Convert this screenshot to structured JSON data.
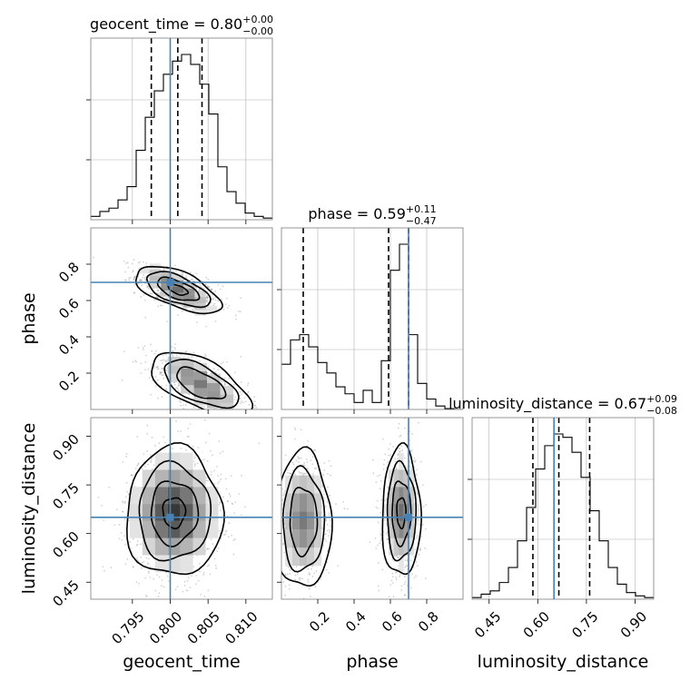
{
  "chart_data": {
    "type": "corner",
    "parameters": [
      "geocent_time",
      "phase",
      "luminosity_distance"
    ],
    "truths": {
      "geocent_time": 0.8,
      "phase": 0.7,
      "luminosity_distance": 0.65
    },
    "marginals": [
      {
        "param": "geocent_time",
        "title": "geocent_time = 0.80",
        "sup": "+0.00",
        "sub": "−0.00",
        "median": 0.801,
        "lo": 0.7975,
        "hi": 0.8042,
        "bin_edges": [
          0.7895,
          0.7907,
          0.7919,
          0.7931,
          0.7943,
          0.7955,
          0.7967,
          0.7979,
          0.7991,
          0.8003,
          0.8015,
          0.8027,
          0.8039,
          0.8051,
          0.8063,
          0.8075,
          0.8087,
          0.8099,
          0.8111,
          0.8123,
          0.8135
        ],
        "counts": [
          0.02,
          0.05,
          0.07,
          0.12,
          0.2,
          0.42,
          0.62,
          0.78,
          0.88,
          0.96,
          1.0,
          0.94,
          0.82,
          0.64,
          0.32,
          0.17,
          0.1,
          0.04,
          0.02,
          0.01
        ]
      },
      {
        "param": "phase",
        "title": "phase = 0.59",
        "sup": "+0.11",
        "sub": "−0.47",
        "median": 0.59,
        "lo": 0.12,
        "hi": 0.7,
        "bin_edges": [
          0.0,
          0.05,
          0.1,
          0.15,
          0.2,
          0.25,
          0.3,
          0.35,
          0.4,
          0.45,
          0.5,
          0.55,
          0.6,
          0.65,
          0.7,
          0.75,
          0.8,
          0.85,
          0.9,
          0.95,
          1.0
        ],
        "counts": [
          0.26,
          0.4,
          0.43,
          0.36,
          0.27,
          0.21,
          0.13,
          0.09,
          0.04,
          0.11,
          0.04,
          0.28,
          0.8,
          0.95,
          0.43,
          0.15,
          0.06,
          0.02,
          0.005,
          0.0
        ]
      },
      {
        "param": "luminosity_distance",
        "title": "luminosity_distance = 0.67",
        "sup": "+0.09",
        "sub": "−0.08",
        "median": 0.665,
        "lo": 0.585,
        "hi": 0.76,
        "bin_edges": [
          0.3975,
          0.4255,
          0.4535,
          0.4815,
          0.5095,
          0.5375,
          0.5655,
          0.5935,
          0.6215,
          0.6495,
          0.6775,
          0.7055,
          0.7335,
          0.7615,
          0.7895,
          0.8175,
          0.8455,
          0.8735,
          0.9015,
          0.9295,
          0.9575
        ],
        "counts": [
          0.01,
          0.03,
          0.05,
          0.1,
          0.19,
          0.35,
          0.55,
          0.78,
          0.92,
          0.99,
          0.97,
          0.88,
          0.73,
          0.53,
          0.35,
          0.19,
          0.09,
          0.04,
          0.02,
          0.01
        ]
      }
    ],
    "axes": {
      "geocent_time": {
        "range": [
          0.7895,
          0.8135
        ],
        "ticks": [
          0.795,
          0.8,
          0.805,
          0.81
        ],
        "tick_labels": [
          "0.795",
          "0.800",
          "0.805",
          "0.810"
        ],
        "label": "geocent_time"
      },
      "phase": {
        "range": [
          0.0,
          1.0
        ],
        "ticks": [
          0.2,
          0.4,
          0.6,
          0.8
        ],
        "tick_labels": [
          "0.2",
          "0.4",
          "0.6",
          "0.8"
        ],
        "label": "phase"
      },
      "luminosity_distance": {
        "range": [
          0.3975,
          0.9575
        ],
        "ticks": [
          0.45,
          0.6,
          0.75,
          0.9
        ],
        "tick_labels": [
          "0.45",
          "0.60",
          "0.75",
          "0.90"
        ],
        "label": "luminosity_distance"
      }
    },
    "phase_y_range": [
      0.0,
      1.0
    ],
    "joint_modes": {
      "geocent_time_vs_phase": [
        {
          "mx": 0.801,
          "my": 0.66,
          "sx": 0.0024,
          "sy": 0.055,
          "rho": -0.6,
          "weight": 0.55
        },
        {
          "mx": 0.804,
          "my": 0.14,
          "sx": 0.0028,
          "sy": 0.075,
          "rho": -0.6,
          "weight": 0.45
        }
      ],
      "geocent_time_vs_luminosity_distance": [
        {
          "mx": 0.8005,
          "my": 0.665,
          "sx": 0.0027,
          "sy": 0.085,
          "rho": 0.0,
          "weight": 1.0
        }
      ],
      "phase_vs_luminosity_distance": [
        {
          "mx": 0.66,
          "my": 0.665,
          "sx": 0.045,
          "sy": 0.085,
          "rho": 0.0,
          "weight": 0.55
        },
        {
          "mx": 0.12,
          "my": 0.64,
          "sx": 0.065,
          "sy": 0.09,
          "rho": 0.0,
          "weight": 0.45
        }
      ]
    },
    "grid": true,
    "colors": {
      "truth": "#4682b4",
      "contour": "#000000",
      "hist": "#000000"
    }
  }
}
